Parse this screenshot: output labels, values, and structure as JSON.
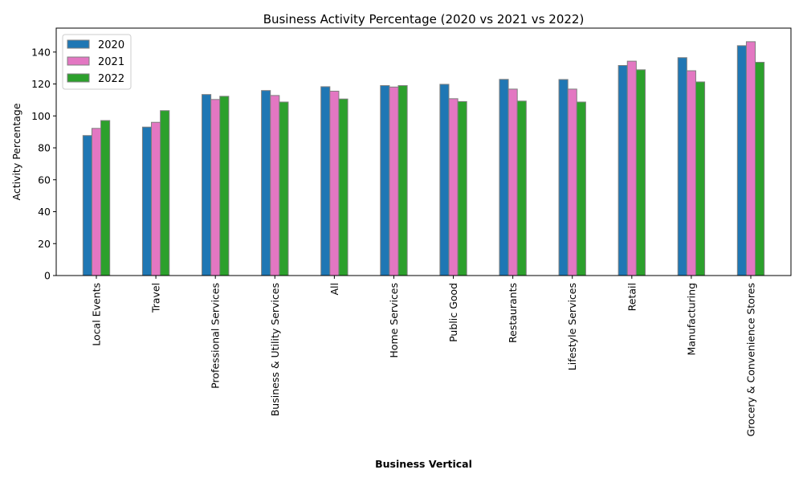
{
  "chart_data": {
    "type": "bar",
    "title": "Business Activity Percentage (2020 vs 2021 vs 2022)",
    "xlabel": "Business Vertical",
    "ylabel": "Activity Percentage",
    "ylim": [
      0,
      155
    ],
    "yticks": [
      0,
      20,
      40,
      60,
      80,
      100,
      120,
      140
    ],
    "legend_position": "top-left",
    "grid": false,
    "categories": [
      "Local Events",
      "Travel",
      "Professional Services",
      "Business & Utility Services",
      "All",
      "Home Services",
      "Public Good",
      "Restaurants",
      "Lifestyle Services",
      "Retail",
      "Manufacturing",
      "Grocery & Convenience Stores"
    ],
    "series": [
      {
        "name": "2020",
        "color": "#1f77b4",
        "values": [
          87.7,
          93.0,
          113.4,
          115.9,
          118.3,
          119.0,
          119.8,
          122.9,
          122.8,
          131.6,
          136.5,
          144.0
        ]
      },
      {
        "name": "2021",
        "color": "#e377c2",
        "values": [
          92.2,
          96.0,
          110.3,
          112.8,
          115.5,
          118.1,
          110.8,
          116.8,
          116.8,
          134.3,
          128.3,
          146.5
        ]
      },
      {
        "name": "2022",
        "color": "#2ca02c",
        "values": [
          97.1,
          103.3,
          112.3,
          108.7,
          110.6,
          119.0,
          109.0,
          109.3,
          108.7,
          128.9,
          121.3,
          133.6
        ]
      }
    ]
  }
}
